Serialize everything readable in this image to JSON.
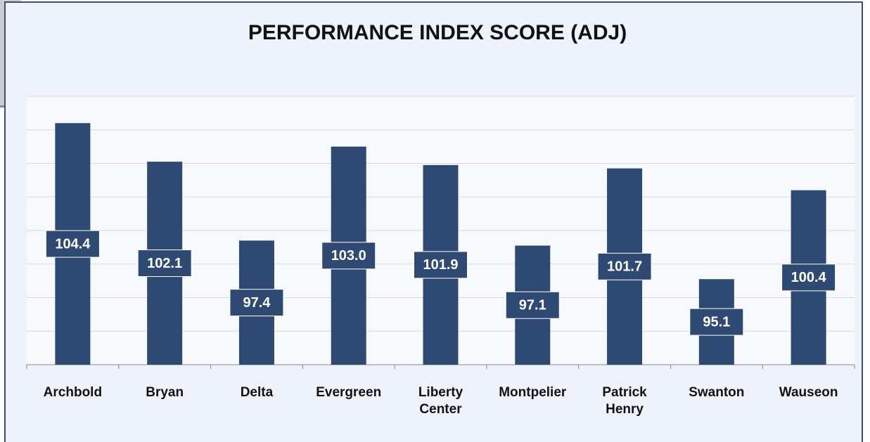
{
  "chart_data": {
    "type": "bar",
    "title": "PERFORMANCE INDEX SCORE (ADJ)",
    "categories": [
      "Archbold",
      "Bryan",
      "Delta",
      "Evergreen",
      "Liberty Center",
      "Montpelier",
      "Patrick Henry",
      "Swanton",
      "Wauseon"
    ],
    "values": [
      104.4,
      102.1,
      97.4,
      103.0,
      101.9,
      97.1,
      101.7,
      95.1,
      100.4
    ],
    "value_labels": [
      "104.4",
      "102.1",
      "97.4",
      "103.0",
      "101.9",
      "97.1",
      "101.7",
      "95.1",
      "100.4"
    ],
    "color": "#2e4a72",
    "ylim": [
      90,
      106
    ],
    "yticks": [
      90,
      92,
      94,
      96,
      98,
      100,
      102,
      104,
      106
    ],
    "grid": true
  }
}
